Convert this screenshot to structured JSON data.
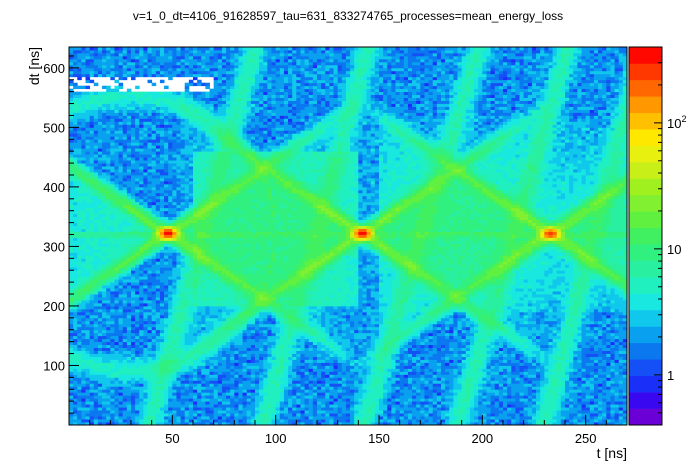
{
  "chart_data": {
    "type": "heatmap",
    "title": "v=1_0_dt=4106_91628597_tau=631_833274765_processes=mean_energy_loss",
    "xlabel": "t [ns]",
    "ylabel": "dt [ns]",
    "xlim": [
      0,
      270
    ],
    "ylim": [
      0,
      635
    ],
    "x_ticks": [
      "50",
      "100",
      "150",
      "200",
      "250"
    ],
    "y_ticks": [
      "100",
      "200",
      "300",
      "400",
      "500",
      "600"
    ],
    "x_tick_values": [
      50,
      100,
      150,
      200,
      250
    ],
    "y_tick_values": [
      100,
      200,
      300,
      400,
      500,
      600
    ],
    "z_scale": "log",
    "zlim": [
      0.4,
      400
    ],
    "z_ticks": [
      "1",
      "10",
      "10^2"
    ],
    "z_tick_values": [
      1,
      10,
      100
    ],
    "palette": [
      "#6a00d6",
      "#3a08f0",
      "#1a30f8",
      "#1450f5",
      "#0b78f0",
      "#0aa0f0",
      "#10c8ec",
      "#18e8e0",
      "#20f0c0",
      "#28f0a0",
      "#30f080",
      "#40f060",
      "#60f040",
      "#80f030",
      "#a0f020",
      "#c8f018",
      "#e8f010",
      "#ffe800",
      "#ffc000",
      "#ff9800",
      "#ff6800",
      "#ff3800",
      "#ff0800"
    ],
    "hotspots": [
      {
        "t": 48,
        "dt": 322,
        "max_count": 300
      },
      {
        "t": 142,
        "dt": 322,
        "max_count": 300
      },
      {
        "t": 233,
        "dt": 322,
        "max_count": 200
      }
    ],
    "grid": false,
    "legend": "color bar right"
  }
}
